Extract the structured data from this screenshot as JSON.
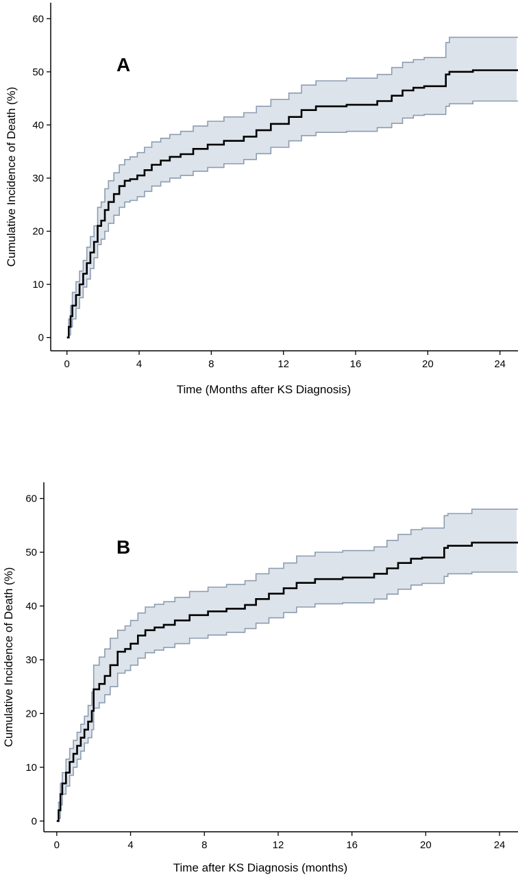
{
  "colors": {
    "estimate_line": "#000000",
    "band_fill": "#dde3ea",
    "band_edge": "#8c9cb0",
    "axis": "#000000"
  },
  "chart_data": [
    {
      "type": "line",
      "panel_label": "A",
      "xlabel": "Time (Months after KS Diagnosis)",
      "ylabel": "Cumulative Incidence of Death (%)",
      "xlim": [
        -0.9,
        25
      ],
      "ylim": [
        -2.5,
        63
      ],
      "xticks": [
        0,
        4,
        8,
        12,
        16,
        20,
        24
      ],
      "yticks": [
        0,
        10,
        20,
        30,
        40,
        50,
        60
      ],
      "grid": false,
      "legend": "none",
      "series": [
        {
          "role": "estimate",
          "step": true,
          "x": [
            0,
            0.1,
            0.2,
            0.3,
            0.5,
            0.7,
            0.9,
            1.1,
            1.3,
            1.5,
            1.7,
            1.9,
            2.1,
            2.3,
            2.6,
            2.9,
            3.2,
            3.5,
            3.9,
            4.3,
            4.7,
            5.2,
            5.7,
            6.3,
            7.0,
            7.8,
            8.7,
            9.8,
            10.5,
            11.3,
            12.3,
            13.0,
            13.8,
            15.5,
            17.2,
            18.0,
            18.6,
            19.2,
            19.8,
            21.0,
            21.2,
            22.5,
            25
          ],
          "y": [
            0,
            2,
            4,
            6,
            8,
            10,
            12,
            14,
            16,
            18,
            21,
            22,
            24,
            25.5,
            27,
            28.5,
            29.5,
            29.8,
            30.5,
            31.5,
            32.5,
            33.3,
            34,
            34.5,
            35.5,
            36.3,
            37,
            37.8,
            39,
            40.2,
            41.5,
            42.8,
            43.5,
            43.8,
            44.5,
            45.5,
            46.5,
            47,
            47.3,
            49.5,
            50,
            50.3,
            50.3
          ]
        },
        {
          "role": "lower-ci",
          "step": true,
          "x": [
            0,
            0.1,
            0.2,
            0.3,
            0.5,
            0.7,
            0.9,
            1.1,
            1.3,
            1.5,
            1.7,
            1.9,
            2.1,
            2.3,
            2.6,
            2.9,
            3.2,
            3.5,
            3.9,
            4.3,
            4.7,
            5.2,
            5.7,
            6.3,
            7.0,
            7.8,
            8.7,
            9.8,
            10.5,
            11.3,
            12.3,
            13.0,
            13.8,
            15.5,
            17.2,
            18.0,
            18.6,
            19.2,
            19.8,
            21.0,
            21.2,
            22.5,
            25
          ],
          "y": [
            0,
            0.5,
            2,
            3.5,
            5.5,
            7.5,
            9.5,
            11,
            13,
            15,
            17.5,
            18.5,
            20,
            21.5,
            23,
            24.5,
            25.5,
            25.8,
            26.5,
            27.5,
            28.5,
            29.3,
            30,
            30.5,
            31.3,
            32,
            32.7,
            33.5,
            34.6,
            35.8,
            37,
            38,
            38.6,
            38.8,
            39.5,
            40.3,
            41.3,
            41.8,
            42,
            43.5,
            44,
            44.5,
            44.5
          ]
        },
        {
          "role": "upper-ci",
          "step": true,
          "x": [
            0,
            0.1,
            0.2,
            0.3,
            0.5,
            0.7,
            0.9,
            1.1,
            1.3,
            1.5,
            1.7,
            1.9,
            2.1,
            2.3,
            2.6,
            2.9,
            3.2,
            3.5,
            3.9,
            4.3,
            4.7,
            5.2,
            5.7,
            6.3,
            7.0,
            7.8,
            8.7,
            9.8,
            10.5,
            11.3,
            12.3,
            13.0,
            13.8,
            15.5,
            17.2,
            18.0,
            18.6,
            19.2,
            19.8,
            21.0,
            21.2,
            22.5,
            25
          ],
          "y": [
            0,
            3.5,
            6,
            8.5,
            10.5,
            12.5,
            14.5,
            17,
            19,
            21,
            24.5,
            25.5,
            28,
            29.5,
            31,
            32.5,
            33.5,
            34,
            34.8,
            35.8,
            36.8,
            37.5,
            38.2,
            38.8,
            39.8,
            40.7,
            41.5,
            42.3,
            43.5,
            44.8,
            46,
            47.5,
            48.3,
            48.8,
            49.5,
            50.8,
            51.8,
            52.3,
            52.7,
            55.5,
            56.5,
            56.5,
            56.5
          ]
        }
      ]
    },
    {
      "type": "line",
      "panel_label": "B",
      "xlabel": "Time after KS Diagnosis (months)",
      "ylabel": "Cumulative Incidence of Death (%)",
      "xlim": [
        -0.7,
        25
      ],
      "ylim": [
        -2,
        63
      ],
      "xticks": [
        0,
        4,
        8,
        12,
        16,
        20,
        24
      ],
      "yticks": [
        0,
        10,
        20,
        30,
        40,
        50,
        60
      ],
      "grid": false,
      "legend": "none",
      "series": [
        {
          "role": "estimate",
          "step": true,
          "x": [
            0,
            0.1,
            0.2,
            0.3,
            0.5,
            0.7,
            0.9,
            1.1,
            1.3,
            1.5,
            1.7,
            1.9,
            2.0,
            2.3,
            2.6,
            2.9,
            3.3,
            3.7,
            4.0,
            4.4,
            4.8,
            5.3,
            5.8,
            6.4,
            7.2,
            8.2,
            9.2,
            10.2,
            10.8,
            11.5,
            12.3,
            13.0,
            14.0,
            15.5,
            17.2,
            17.9,
            18.5,
            19.2,
            19.8,
            21.0,
            21.2,
            22.5,
            25
          ],
          "y": [
            0,
            2,
            5,
            7,
            9,
            11,
            12.5,
            14,
            15.5,
            17,
            18.5,
            20.5,
            24.5,
            25.5,
            27,
            29,
            31.5,
            32,
            33,
            34.5,
            35.5,
            36,
            36.5,
            37.3,
            38.3,
            39,
            39.5,
            40.2,
            41.3,
            42.3,
            43.3,
            44.3,
            45,
            45.3,
            46,
            47,
            48,
            48.8,
            49,
            50.8,
            51.2,
            51.8,
            51.8
          ]
        },
        {
          "role": "lower-ci",
          "step": true,
          "x": [
            0,
            0.1,
            0.2,
            0.3,
            0.5,
            0.7,
            0.9,
            1.1,
            1.3,
            1.5,
            1.7,
            1.9,
            2.0,
            2.3,
            2.6,
            2.9,
            3.3,
            3.7,
            4.0,
            4.4,
            4.8,
            5.3,
            5.8,
            6.4,
            7.2,
            8.2,
            9.2,
            10.2,
            10.8,
            11.5,
            12.3,
            13.0,
            14.0,
            15.5,
            17.2,
            17.9,
            18.5,
            19.2,
            19.8,
            21.0,
            21.2,
            22.5,
            25
          ],
          "y": [
            0,
            0.5,
            3,
            5,
            6.5,
            8.5,
            10,
            11.5,
            13,
            14.5,
            15.5,
            17,
            21,
            22,
            23.5,
            25,
            27.5,
            28,
            29,
            30.3,
            31.3,
            31.8,
            32.3,
            33,
            34,
            34.6,
            35.1,
            35.8,
            36.8,
            37.8,
            38.8,
            39.8,
            40.4,
            40.6,
            41.3,
            42.2,
            43.1,
            43.9,
            44.2,
            45.5,
            46,
            46.3,
            46.3
          ]
        },
        {
          "role": "upper-ci",
          "step": true,
          "x": [
            0,
            0.1,
            0.2,
            0.3,
            0.5,
            0.7,
            0.9,
            1.1,
            1.3,
            1.5,
            1.7,
            1.9,
            2.0,
            2.3,
            2.6,
            2.9,
            3.3,
            3.7,
            4.0,
            4.4,
            4.8,
            5.3,
            5.8,
            6.4,
            7.2,
            8.2,
            9.2,
            10.2,
            10.8,
            11.5,
            12.3,
            13.0,
            14.0,
            15.5,
            17.2,
            17.9,
            18.5,
            19.2,
            19.8,
            21.0,
            21.2,
            22.5,
            25
          ],
          "y": [
            0,
            3.5,
            7,
            9,
            11.5,
            13.5,
            15,
            16.5,
            18,
            19.5,
            21.5,
            24,
            29,
            30.5,
            32,
            34,
            35.5,
            36.3,
            37.3,
            38.7,
            39.8,
            40.3,
            40.8,
            41.6,
            42.7,
            43.5,
            44,
            44.7,
            46,
            47,
            48,
            49.3,
            50,
            50.3,
            51,
            52.2,
            53.3,
            54.2,
            54.5,
            56.8,
            57.2,
            58,
            58
          ]
        }
      ]
    }
  ]
}
